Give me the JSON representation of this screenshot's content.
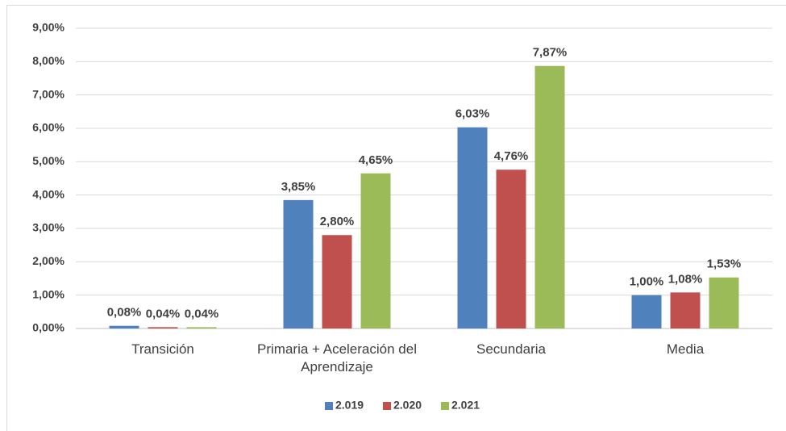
{
  "chart_data": {
    "type": "bar",
    "categories": [
      "Transición",
      "Primaria + Aceleración del Aprendizaje",
      "Secundaria",
      "Media"
    ],
    "series": [
      {
        "name": "2.019",
        "color": "#4f81bd",
        "values": [
          0.08,
          3.85,
          6.03,
          1.0
        ],
        "value_labels": [
          "0,08%",
          "3,85%",
          "6,03%",
          "1,00%"
        ]
      },
      {
        "name": "2.020",
        "color": "#c0504d",
        "values": [
          0.04,
          2.8,
          4.76,
          1.08
        ],
        "value_labels": [
          "0,04%",
          "2,80%",
          "4,76%",
          "1,08%"
        ]
      },
      {
        "name": "2.021",
        "color": "#9bbb59",
        "values": [
          0.04,
          4.65,
          7.87,
          1.53
        ],
        "value_labels": [
          "0,04%",
          "4,65%",
          "7,87%",
          "1,53%"
        ]
      }
    ],
    "ylim": [
      0,
      9
    ],
    "yticks": [
      {
        "value": 0,
        "label": "0,00%"
      },
      {
        "value": 1,
        "label": "1,00%"
      },
      {
        "value": 2,
        "label": "2,00%"
      },
      {
        "value": 3,
        "label": "3,00%"
      },
      {
        "value": 4,
        "label": "4,00%"
      },
      {
        "value": 5,
        "label": "5,00%"
      },
      {
        "value": 6,
        "label": "6,00%"
      },
      {
        "value": 7,
        "label": "7,00%"
      },
      {
        "value": 8,
        "label": "8,00%"
      },
      {
        "value": 9,
        "label": "9,00%"
      }
    ],
    "grid": true,
    "legend": "bottom"
  }
}
